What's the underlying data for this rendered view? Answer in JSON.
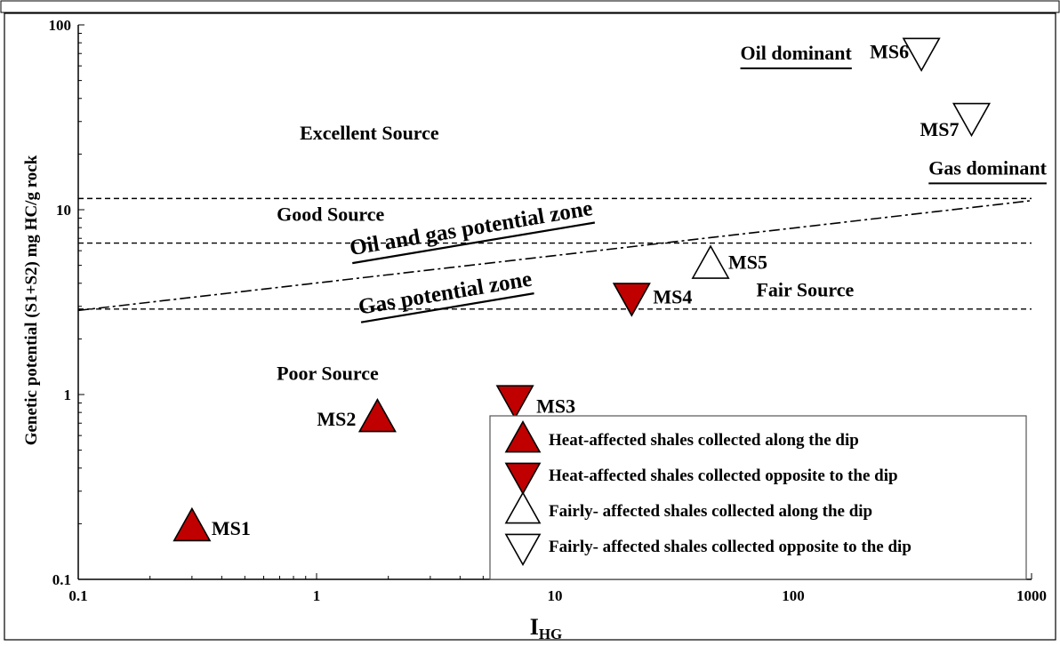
{
  "chart_data": {
    "type": "scatter",
    "title": "",
    "xlabel": {
      "main": "I",
      "sub": "HG"
    },
    "ylabel": "Genetic potential (S1+S2) mg HC/g rock",
    "x_scale": "log",
    "y_scale": "log",
    "xlim": [
      0.1,
      1000
    ],
    "ylim": [
      0.1,
      100
    ],
    "x_ticks": [
      {
        "value": 0.1,
        "label": "0.1"
      },
      {
        "value": 1,
        "label": "1"
      },
      {
        "value": 10,
        "label": "10"
      },
      {
        "value": 100,
        "label": "100"
      },
      {
        "value": 1000,
        "label": "1000"
      }
    ],
    "y_ticks": [
      {
        "value": 0.1,
        "label": "0.1"
      },
      {
        "value": 1,
        "label": "1"
      },
      {
        "value": 10,
        "label": "10"
      },
      {
        "value": 100,
        "label": "100"
      }
    ],
    "grid": false,
    "legend_position": "bottom-right",
    "series": [
      {
        "name": "Heat-affected shales collected along the dip",
        "marker": "triangle-up",
        "fill": "#c00000",
        "points": [
          {
            "label": "MS1",
            "x": 0.3,
            "y": 0.19
          },
          {
            "label": "MS2",
            "x": 1.8,
            "y": 0.74
          }
        ]
      },
      {
        "name": "Heat-affected shales collected opposite to the dip",
        "marker": "triangle-down",
        "fill": "#c00000",
        "points": [
          {
            "label": "MS3",
            "x": 6.8,
            "y": 0.95
          },
          {
            "label": "MS4",
            "x": 21,
            "y": 3.4
          }
        ]
      },
      {
        "name": "Fairly- affected shales collected along the dip",
        "marker": "triangle-up",
        "fill": "#ffffff",
        "points": [
          {
            "label": "MS5",
            "x": 45,
            "y": 5.0
          }
        ]
      },
      {
        "name": "Fairly- affected shales collected opposite to the dip",
        "marker": "triangle-down",
        "fill": "#ffffff",
        "points": [
          {
            "label": "MS6",
            "x": 345,
            "y": 72
          },
          {
            "label": "MS7",
            "x": 560,
            "y": 32
          }
        ]
      }
    ],
    "threshold_lines": [
      {
        "y": 2.9
      },
      {
        "y": 6.6
      },
      {
        "y": 11.5
      }
    ],
    "trend_line": {
      "from": [
        0.1,
        2.85
      ],
      "to": [
        1000,
        11.2
      ]
    },
    "zone_labels": [
      {
        "text": "Excellent Source",
        "x": 0.85,
        "y": 24,
        "underline": false
      },
      {
        "text": "Good Source",
        "x": 0.68,
        "y": 8.7,
        "underline": false
      },
      {
        "text": "Fair Source",
        "x": 70,
        "y": 3.4,
        "underline": false
      },
      {
        "text": "Poor Source",
        "x": 0.68,
        "y": 1.2,
        "underline": false
      },
      {
        "text": "Oil dominant",
        "x": 60,
        "y": 65,
        "underline": true
      },
      {
        "text": "Gas dominant",
        "x": 370,
        "y": 15.5,
        "underline": true
      }
    ],
    "angled_labels": [
      {
        "text": "Oil and gas potential zone",
        "x": 4.5,
        "y": 7.3
      },
      {
        "text": "Gas potential zone",
        "x": 3.5,
        "y": 3.25
      }
    ],
    "colors": {
      "heat_affected": "#c00000",
      "fairly_affected": "#ffffff",
      "marker_outline": "#000000",
      "axes": "#000000"
    }
  }
}
